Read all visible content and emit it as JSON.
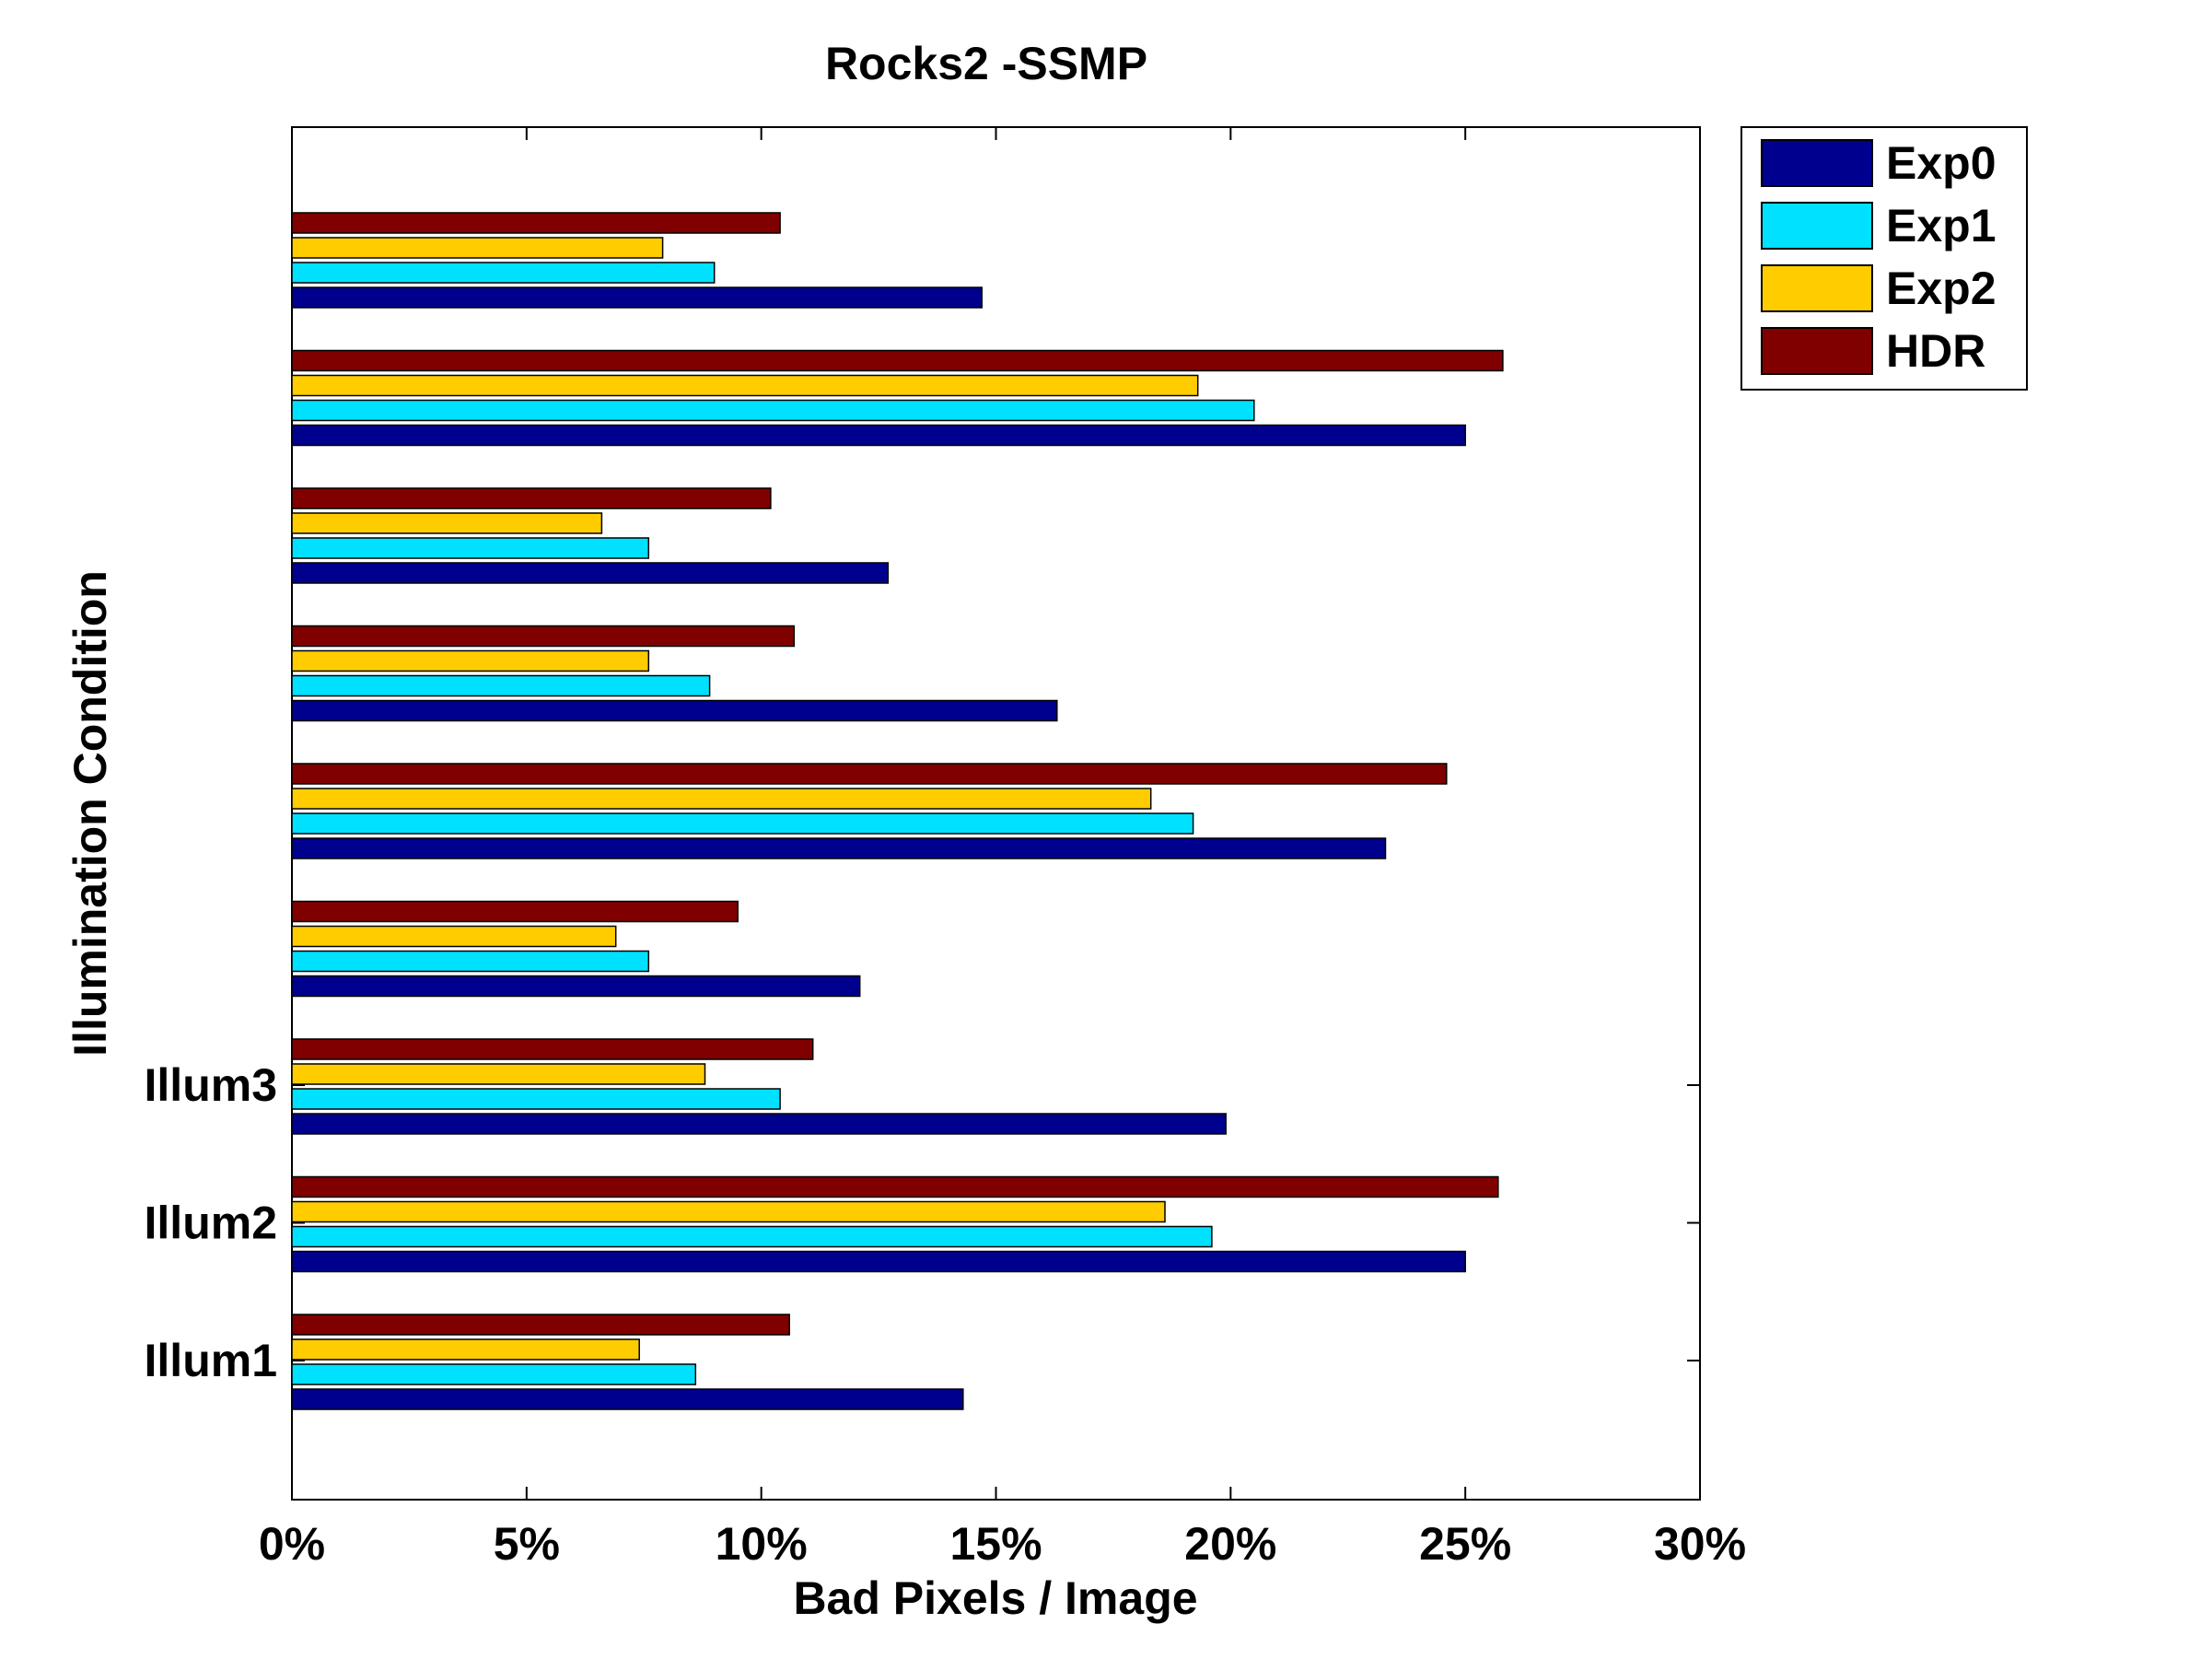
{
  "chart_data": {
    "type": "bar",
    "orientation": "horizontal",
    "title": "Rocks2 -SSMP",
    "xlabel": "Bad Pixels / Image",
    "ylabel": "Illumination Condition",
    "xlim": [
      0,
      30
    ],
    "x_ticks": [
      0,
      5,
      10,
      15,
      20,
      25,
      30
    ],
    "x_tick_labels": [
      "0%",
      "5%",
      "10%",
      "15%",
      "20%",
      "25%",
      "30%"
    ],
    "y_tick_labels": [
      "Illum1",
      "Illum2",
      "Illum3"
    ],
    "grid": false,
    "legend_position": "outside-top-right",
    "categories": [
      "Illum1",
      "Illum2",
      "Illum3",
      "",
      "",
      "",
      "",
      "",
      ""
    ],
    "series": [
      {
        "name": "Exp0",
        "color": "#00008F",
        "values": [
          14.3,
          25.0,
          19.9,
          12.1,
          23.3,
          16.3,
          12.7,
          25.0,
          14.7
        ]
      },
      {
        "name": "Exp1",
        "color": "#00E1FF",
        "values": [
          8.6,
          19.6,
          10.4,
          7.6,
          19.2,
          8.9,
          7.6,
          20.5,
          9.0
        ]
      },
      {
        "name": "Exp2",
        "color": "#FFCC00",
        "values": [
          7.4,
          18.6,
          8.8,
          6.9,
          18.3,
          7.6,
          6.6,
          19.3,
          7.9
        ]
      },
      {
        "name": "HDR",
        "color": "#800000",
        "values": [
          10.6,
          25.7,
          11.1,
          9.5,
          24.6,
          10.7,
          10.2,
          25.8,
          10.4
        ]
      }
    ]
  }
}
